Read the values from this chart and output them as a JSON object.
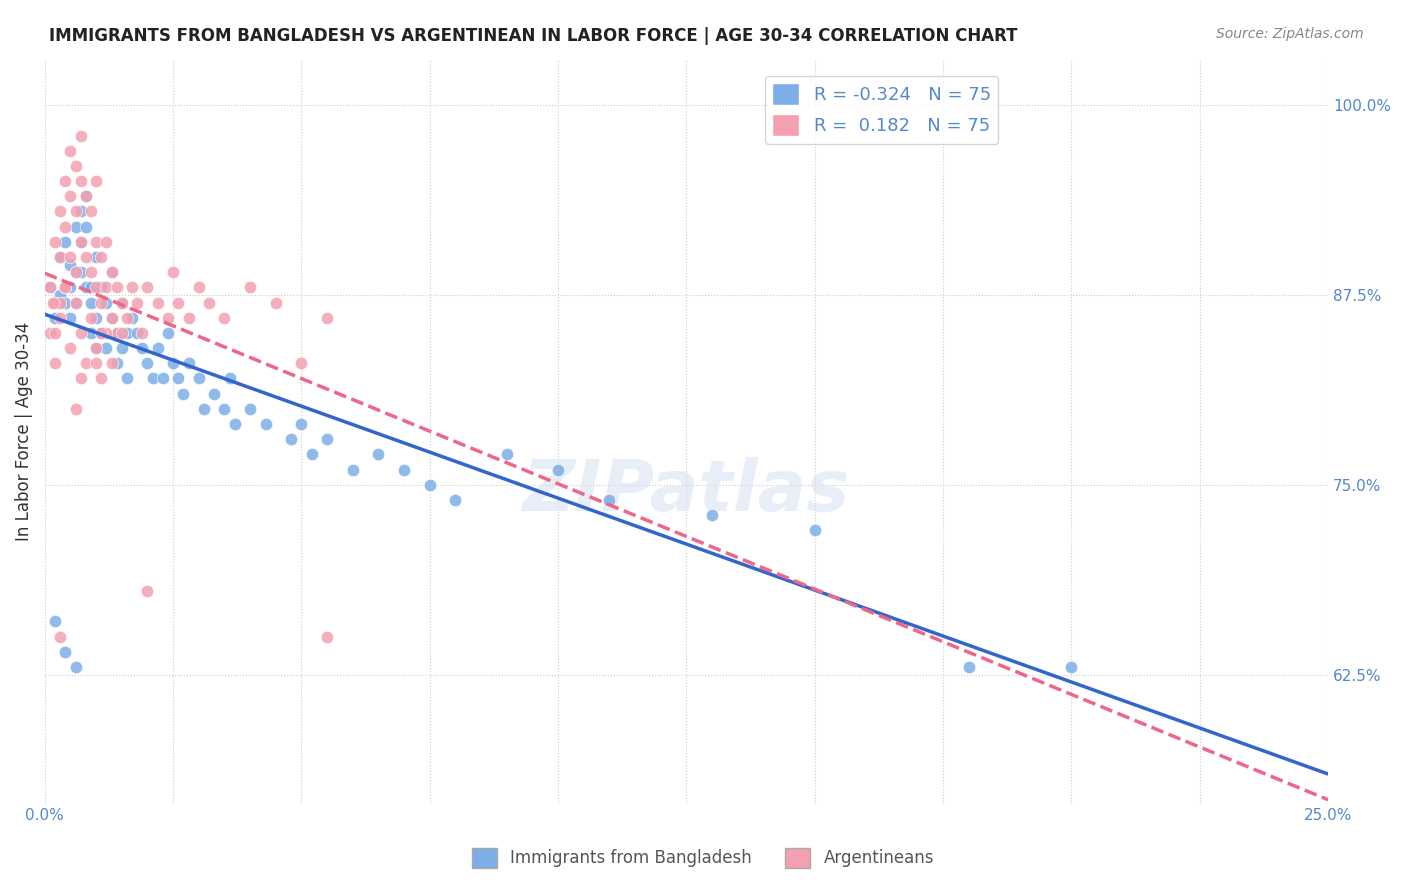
{
  "title": "IMMIGRANTS FROM BANGLADESH VS ARGENTINEAN IN LABOR FORCE | AGE 30-34 CORRELATION CHART",
  "source": "Source: ZipAtlas.com",
  "xlabel": "",
  "ylabel": "In Labor Force | Age 30-34",
  "xlim": [
    0.0,
    0.25
  ],
  "ylim": [
    0.54,
    1.03
  ],
  "xticks": [
    0.0,
    0.025,
    0.05,
    0.075,
    0.1,
    0.125,
    0.15,
    0.175,
    0.2,
    0.225,
    0.25
  ],
  "xticklabels": [
    "0.0%",
    "",
    "",
    "",
    "",
    "",
    "",
    "",
    "",
    "",
    "25.0%"
  ],
  "yticks": [
    0.625,
    0.75,
    0.875,
    1.0
  ],
  "yticklabels": [
    "62.5%",
    "75.0%",
    "87.5%",
    "100.0%"
  ],
  "blue_R": -0.324,
  "blue_N": 75,
  "pink_R": 0.182,
  "pink_N": 75,
  "blue_color": "#7daee8",
  "pink_color": "#f4a0b0",
  "blue_line_color": "#3366cc",
  "pink_line_color": "#ee6688",
  "watermark": "ZIPatlas",
  "legend_label_blue": "Immigrants from Bangladesh",
  "legend_label_pink": "Argentineans",
  "blue_scatter_x": [
    0.001,
    0.002,
    0.003,
    0.003,
    0.004,
    0.004,
    0.005,
    0.005,
    0.005,
    0.006,
    0.006,
    0.006,
    0.007,
    0.007,
    0.007,
    0.008,
    0.008,
    0.008,
    0.009,
    0.009,
    0.009,
    0.01,
    0.01,
    0.01,
    0.011,
    0.011,
    0.012,
    0.012,
    0.013,
    0.013,
    0.014,
    0.014,
    0.015,
    0.015,
    0.016,
    0.016,
    0.017,
    0.018,
    0.019,
    0.02,
    0.021,
    0.022,
    0.023,
    0.024,
    0.025,
    0.026,
    0.027,
    0.028,
    0.03,
    0.031,
    0.033,
    0.035,
    0.036,
    0.037,
    0.04,
    0.043,
    0.048,
    0.05,
    0.052,
    0.055,
    0.06,
    0.065,
    0.07,
    0.075,
    0.08,
    0.09,
    0.1,
    0.11,
    0.13,
    0.15,
    0.002,
    0.004,
    0.006,
    0.18,
    0.2
  ],
  "blue_scatter_y": [
    0.88,
    0.86,
    0.875,
    0.9,
    0.91,
    0.87,
    0.895,
    0.88,
    0.86,
    0.92,
    0.89,
    0.87,
    0.93,
    0.91,
    0.89,
    0.94,
    0.92,
    0.88,
    0.87,
    0.85,
    0.88,
    0.9,
    0.86,
    0.84,
    0.88,
    0.85,
    0.87,
    0.84,
    0.86,
    0.89,
    0.85,
    0.83,
    0.87,
    0.84,
    0.85,
    0.82,
    0.86,
    0.85,
    0.84,
    0.83,
    0.82,
    0.84,
    0.82,
    0.85,
    0.83,
    0.82,
    0.81,
    0.83,
    0.82,
    0.8,
    0.81,
    0.8,
    0.82,
    0.79,
    0.8,
    0.79,
    0.78,
    0.79,
    0.77,
    0.78,
    0.76,
    0.77,
    0.76,
    0.75,
    0.74,
    0.77,
    0.76,
    0.74,
    0.73,
    0.72,
    0.66,
    0.64,
    0.63,
    0.63,
    0.63
  ],
  "pink_scatter_x": [
    0.001,
    0.002,
    0.002,
    0.003,
    0.003,
    0.004,
    0.004,
    0.004,
    0.005,
    0.005,
    0.005,
    0.006,
    0.006,
    0.006,
    0.007,
    0.007,
    0.007,
    0.008,
    0.008,
    0.009,
    0.009,
    0.01,
    0.01,
    0.01,
    0.011,
    0.011,
    0.012,
    0.012,
    0.013,
    0.013,
    0.014,
    0.014,
    0.015,
    0.016,
    0.017,
    0.018,
    0.019,
    0.02,
    0.022,
    0.024,
    0.025,
    0.026,
    0.028,
    0.03,
    0.032,
    0.035,
    0.04,
    0.045,
    0.05,
    0.055,
    0.001,
    0.002,
    0.003,
    0.004,
    0.005,
    0.006,
    0.007,
    0.008,
    0.009,
    0.01,
    0.011,
    0.012,
    0.013,
    0.006,
    0.007,
    0.004,
    0.003,
    0.002,
    0.0015,
    0.011,
    0.02,
    0.055,
    0.003,
    0.01,
    0.015
  ],
  "pink_scatter_y": [
    0.88,
    0.91,
    0.87,
    0.93,
    0.9,
    0.95,
    0.92,
    0.88,
    0.97,
    0.94,
    0.9,
    0.96,
    0.93,
    0.89,
    0.98,
    0.95,
    0.91,
    0.94,
    0.9,
    0.93,
    0.89,
    0.95,
    0.91,
    0.88,
    0.9,
    0.87,
    0.91,
    0.88,
    0.89,
    0.86,
    0.88,
    0.85,
    0.87,
    0.86,
    0.88,
    0.87,
    0.85,
    0.88,
    0.87,
    0.86,
    0.89,
    0.87,
    0.86,
    0.88,
    0.87,
    0.86,
    0.88,
    0.87,
    0.83,
    0.86,
    0.85,
    0.83,
    0.86,
    0.88,
    0.84,
    0.87,
    0.85,
    0.83,
    0.86,
    0.84,
    0.82,
    0.85,
    0.83,
    0.8,
    0.82,
    0.88,
    0.87,
    0.85,
    0.87,
    0.85,
    0.68,
    0.65,
    0.65,
    0.83,
    0.85
  ]
}
